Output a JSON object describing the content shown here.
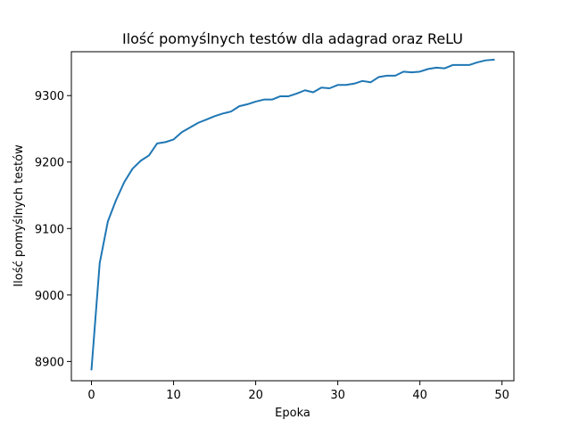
{
  "chart_data": {
    "type": "line",
    "title": "Ilość pomyślnych testów dla adagrad oraz ReLU",
    "xlabel": "Epoka",
    "ylabel": "Ilość pomyślnych testów",
    "xlim": [
      -2.45,
      51.45
    ],
    "ylim": [
      8871,
      9366
    ],
    "xticks": [
      0,
      10,
      20,
      30,
      40,
      50
    ],
    "yticks": [
      8900,
      9000,
      9100,
      9200,
      9300
    ],
    "grid": false,
    "series": [
      {
        "color": "#1f77b4",
        "x": [
          0,
          1,
          2,
          3,
          4,
          5,
          6,
          7,
          8,
          9,
          10,
          11,
          12,
          13,
          14,
          15,
          16,
          17,
          18,
          19,
          20,
          21,
          22,
          23,
          24,
          25,
          26,
          27,
          28,
          29,
          30,
          31,
          32,
          33,
          34,
          35,
          36,
          37,
          38,
          39,
          40,
          41,
          42,
          43,
          44,
          45,
          46,
          47,
          48,
          49
        ],
        "values": [
          8888,
          9048,
          9111,
          9143,
          9170,
          9190,
          9202,
          9210,
          9228,
          9230,
          9234,
          9245,
          9252,
          9259,
          9264,
          9269,
          9273,
          9276,
          9284,
          9287,
          9291,
          9294,
          9294,
          9299,
          9299,
          9303,
          9308,
          9305,
          9312,
          9311,
          9316,
          9316,
          9318,
          9322,
          9320,
          9328,
          9330,
          9330,
          9336,
          9335,
          9336,
          9340,
          9342,
          9341,
          9346,
          9346,
          9346,
          9350,
          9353,
          9354
        ]
      }
    ]
  }
}
